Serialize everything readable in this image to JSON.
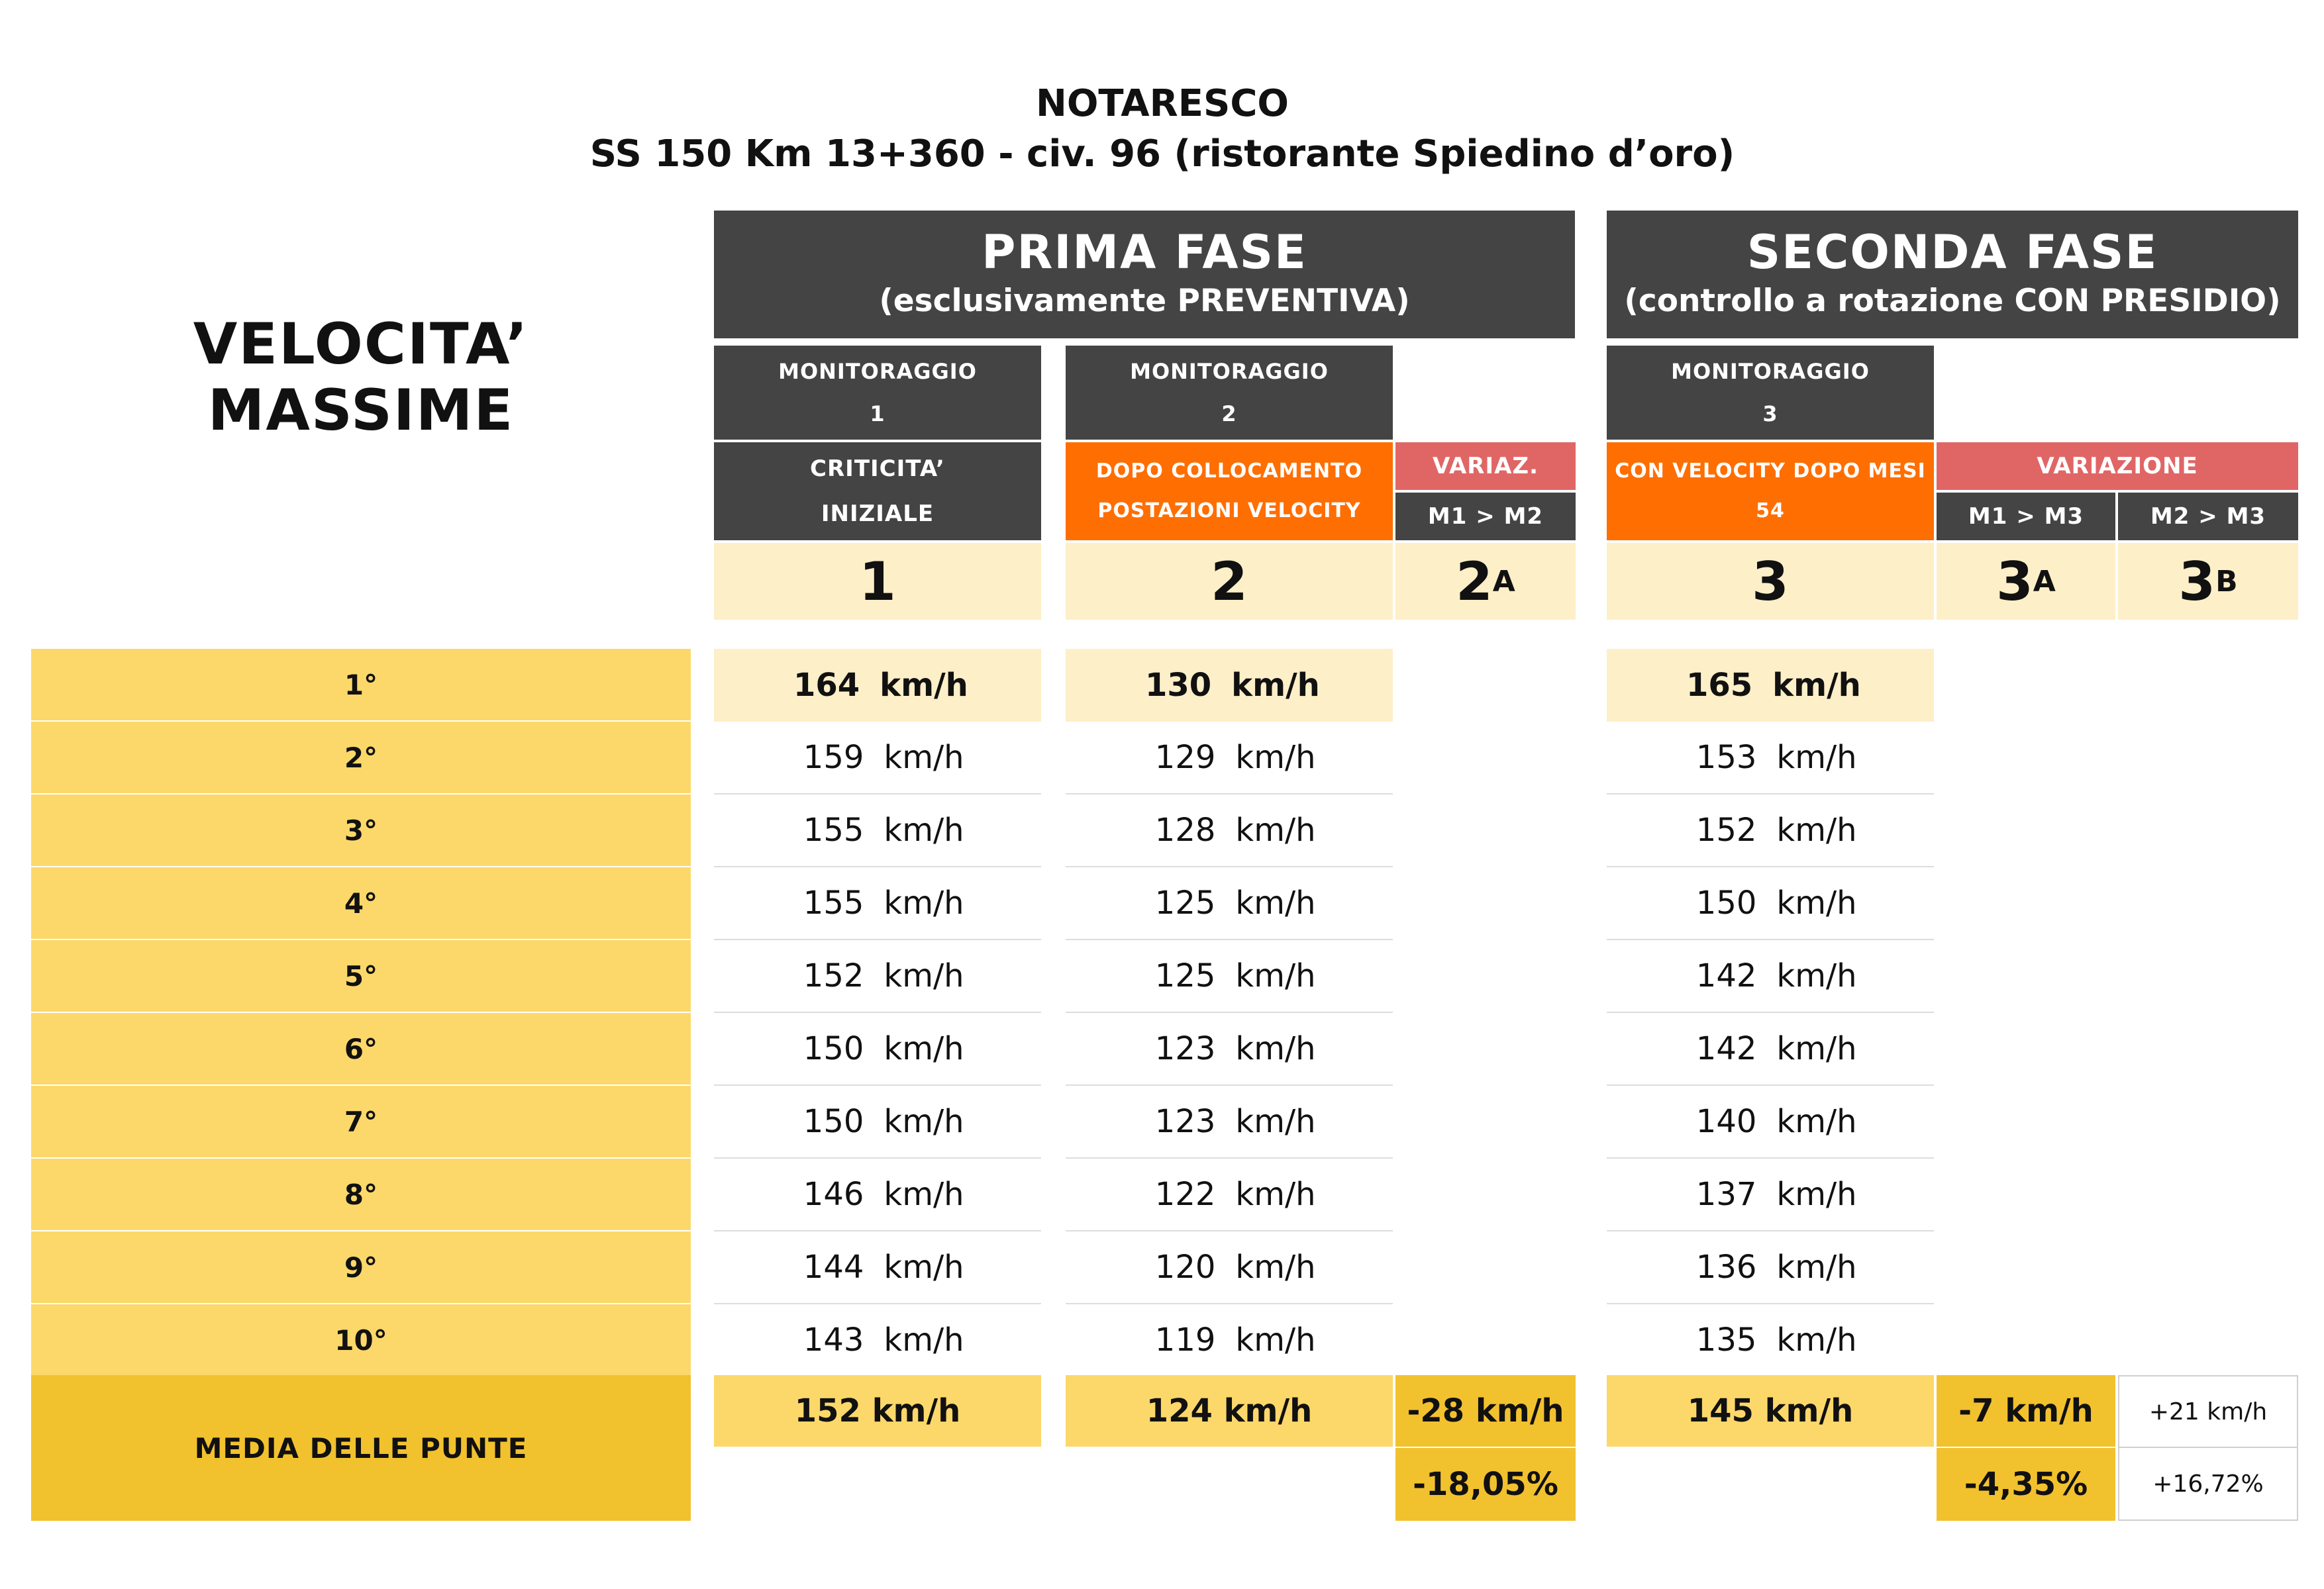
{
  "title": {
    "line1": "NOTARESCO",
    "line2": "SS 150 Km 13+360 - civ. 96 (ristorante Spiedino d’oro)"
  },
  "left_heading": "VELOCITA’ MASSIME",
  "phases": {
    "first": {
      "title": "PRIMA FASE",
      "subtitle": "(esclusivamente PREVENTIVA)"
    },
    "second": {
      "title": "SECONDA FASE",
      "subtitle": "(controllo a rotazione CON PRESIDIO)"
    }
  },
  "monitoring": {
    "m1": {
      "label": "MONITORAGGIO",
      "num": "1",
      "desc1": "CRITICITA’",
      "desc2": "INIZIALE",
      "index": "1"
    },
    "m2": {
      "label": "MONITORAGGIO",
      "num": "2",
      "desc1": "DOPO COLLOCAMENTO",
      "desc2": "POSTAZIONI VELOCITY",
      "index": "2"
    },
    "m3": {
      "label": "MONITORAGGIO",
      "num": "3",
      "desc1": "CON VELOCITY DOPO MESI",
      "desc2": "54",
      "index": "3"
    }
  },
  "variation_2": {
    "label": "VARIAZ.",
    "sub": "M1 > M2",
    "index": "2",
    "index_sub": "A"
  },
  "variation_3": {
    "label": "VARIAZIONE",
    "sub_a": "M1 > M3",
    "sub_b": "M2 > M3",
    "index": "3",
    "index_sub_a": "A",
    "index_sub_b": "B"
  },
  "unit": "km/h",
  "ranks": [
    "1°",
    "2°",
    "3°",
    "4°",
    "5°",
    "6°",
    "7°",
    "8°",
    "9°",
    "10°"
  ],
  "speeds": {
    "m1": [
      "164",
      "159",
      "155",
      "155",
      "152",
      "150",
      "150",
      "146",
      "144",
      "143"
    ],
    "m2": [
      "130",
      "129",
      "128",
      "125",
      "125",
      "123",
      "123",
      "122",
      "120",
      "119"
    ],
    "m3": [
      "165",
      "153",
      "152",
      "150",
      "142",
      "142",
      "140",
      "137",
      "136",
      "135"
    ]
  },
  "average": {
    "label": "MEDIA DELLE PUNTE",
    "m1": "152 km/h",
    "m2": "124 km/h",
    "m3": "145 km/h",
    "var_2a_kmh": "-28 km/h",
    "var_2a_pct": "-18,05%",
    "var_3a_kmh": "-7 km/h",
    "var_3a_pct": "-4,35%",
    "var_3b_kmh": "+21 km/h",
    "var_3b_pct": "+16,72%"
  }
}
